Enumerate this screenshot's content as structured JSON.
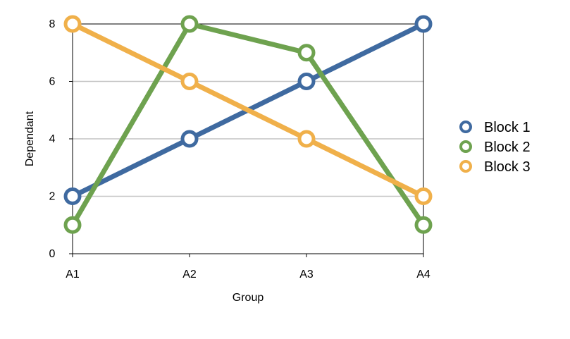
{
  "chart_data": {
    "type": "line",
    "categories": [
      "A1",
      "A2",
      "A3",
      "A4"
    ],
    "xlabel": "Group",
    "ylabel": "Dependant",
    "ylim": [
      0,
      8
    ],
    "yticks": [
      0,
      2,
      4,
      6,
      8
    ],
    "grid": "horizontal",
    "legend_position": "right",
    "series": [
      {
        "name": "Block 1",
        "color": "#3f6aa0",
        "values": [
          2,
          4,
          6,
          8
        ]
      },
      {
        "name": "Block 2",
        "color": "#6ea24f",
        "values": [
          1,
          8,
          7,
          1
        ]
      },
      {
        "name": "Block 3",
        "color": "#f0b04a",
        "values": [
          8,
          6,
          4,
          2
        ]
      }
    ]
  }
}
